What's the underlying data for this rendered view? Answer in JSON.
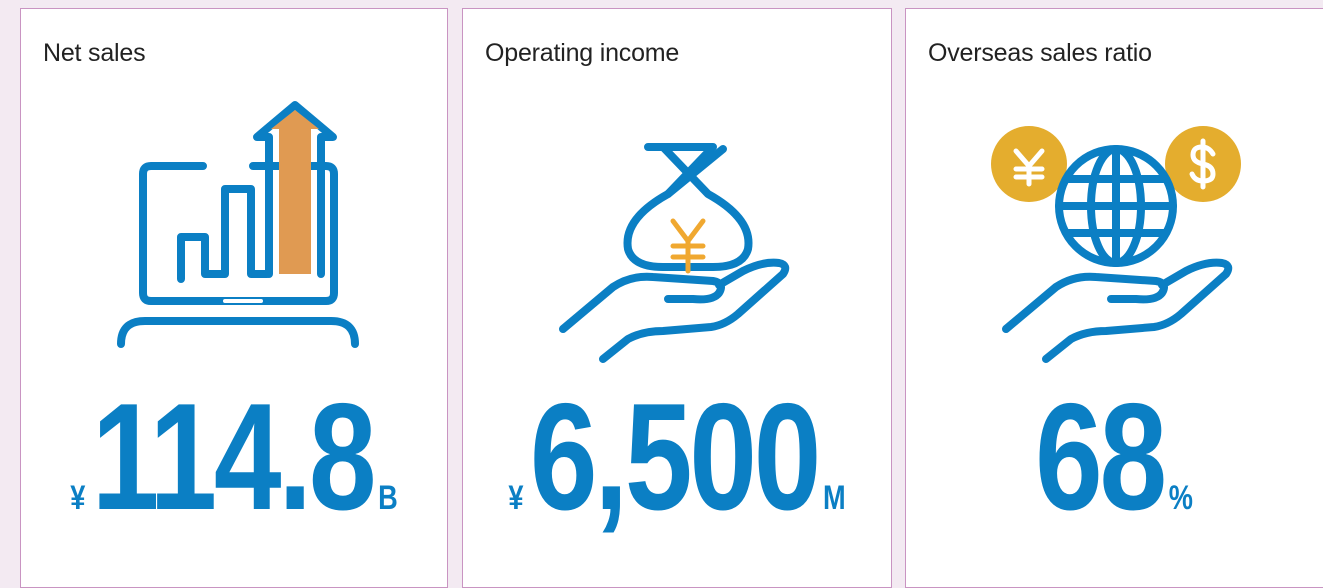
{
  "cards": [
    {
      "title": "Net sales",
      "prefix": "¥",
      "value": "114.8",
      "suffix": "B"
    },
    {
      "title": "Operating income",
      "prefix": "¥",
      "value": "6,500",
      "suffix": "M"
    },
    {
      "title": "Overseas sales ratio",
      "value": "68",
      "suffix": "%"
    }
  ]
}
